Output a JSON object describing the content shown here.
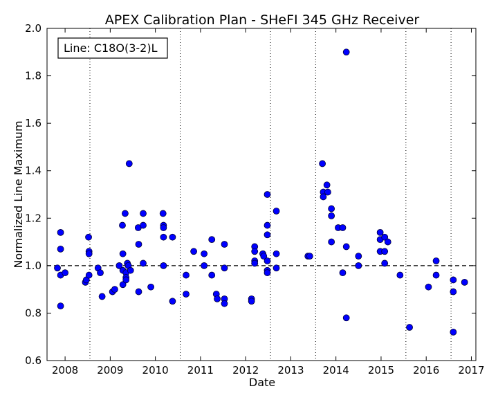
{
  "chart_data": {
    "type": "scatter",
    "title": "APEX Calibration Plan - SHeFI 345 GHz Receiver",
    "xlabel": "Date",
    "ylabel": "Normalized Line Maximum",
    "annotation": "Line: C18O(3-2)L",
    "xlim": [
      2007.6,
      2017.1
    ],
    "ylim": [
      0.6,
      2.0
    ],
    "x_ticks": [
      "2008",
      "2009",
      "2010",
      "2011",
      "2012",
      "2013",
      "2014",
      "2015",
      "2016",
      "2017"
    ],
    "y_ticks": [
      "0.6",
      "0.8",
      "1.0",
      "1.2",
      "1.4",
      "1.6",
      "1.8",
      "2.0"
    ],
    "reference_line": 1.0,
    "vertical_dotted_lines": [
      2008.55,
      2010.55,
      2012.55,
      2013.55,
      2015.55,
      2016.55
    ],
    "marker_color": "#0000ff",
    "grid": false,
    "legend_position": "top-left",
    "points": [
      [
        2007.83,
        0.99
      ],
      [
        2007.9,
        0.96
      ],
      [
        2007.9,
        1.07
      ],
      [
        2007.9,
        1.14
      ],
      [
        2007.9,
        0.83
      ],
      [
        2008.0,
        0.97
      ],
      [
        2008.45,
        0.93
      ],
      [
        2008.47,
        0.94
      ],
      [
        2008.52,
        1.12
      ],
      [
        2008.53,
        1.06
      ],
      [
        2008.53,
        1.05
      ],
      [
        2008.53,
        0.96
      ],
      [
        2008.73,
        0.99
      ],
      [
        2008.78,
        0.97
      ],
      [
        2008.82,
        0.87
      ],
      [
        2009.05,
        0.89
      ],
      [
        2009.1,
        0.9
      ],
      [
        2009.2,
        1.0
      ],
      [
        2009.27,
        1.17
      ],
      [
        2009.28,
        1.05
      ],
      [
        2009.28,
        0.98
      ],
      [
        2009.28,
        0.92
      ],
      [
        2009.33,
        1.22
      ],
      [
        2009.35,
        0.97
      ],
      [
        2009.35,
        0.95
      ],
      [
        2009.35,
        0.94
      ],
      [
        2009.38,
        1.01
      ],
      [
        2009.4,
        1.0
      ],
      [
        2009.42,
        1.43
      ],
      [
        2009.45,
        0.98
      ],
      [
        2009.62,
        1.16
      ],
      [
        2009.63,
        1.09
      ],
      [
        2009.63,
        0.89
      ],
      [
        2009.73,
        1.22
      ],
      [
        2009.73,
        1.17
      ],
      [
        2009.73,
        1.01
      ],
      [
        2009.9,
        0.91
      ],
      [
        2010.17,
        1.22
      ],
      [
        2010.18,
        1.17
      ],
      [
        2010.18,
        1.16
      ],
      [
        2010.18,
        1.12
      ],
      [
        2010.18,
        1.0
      ],
      [
        2010.38,
        0.85
      ],
      [
        2010.38,
        1.12
      ],
      [
        2010.68,
        0.96
      ],
      [
        2010.68,
        0.88
      ],
      [
        2010.85,
        1.06
      ],
      [
        2011.08,
        1.05
      ],
      [
        2011.08,
        1.0
      ],
      [
        2011.25,
        1.11
      ],
      [
        2011.25,
        0.96
      ],
      [
        2011.35,
        0.88
      ],
      [
        2011.37,
        0.86
      ],
      [
        2011.53,
        1.09
      ],
      [
        2011.53,
        0.99
      ],
      [
        2011.53,
        0.86
      ],
      [
        2011.53,
        0.84
      ],
      [
        2012.13,
        0.86
      ],
      [
        2012.13,
        0.85
      ],
      [
        2012.2,
        1.08
      ],
      [
        2012.2,
        1.06
      ],
      [
        2012.2,
        1.02
      ],
      [
        2012.2,
        1.01
      ],
      [
        2012.38,
        1.05
      ],
      [
        2012.4,
        1.04
      ],
      [
        2012.48,
        1.3
      ],
      [
        2012.48,
        1.17
      ],
      [
        2012.48,
        1.13
      ],
      [
        2012.48,
        1.02
      ],
      [
        2012.48,
        0.98
      ],
      [
        2012.48,
        0.97
      ],
      [
        2012.68,
        1.23
      ],
      [
        2012.68,
        1.05
      ],
      [
        2012.68,
        0.99
      ],
      [
        2013.38,
        1.04
      ],
      [
        2013.42,
        1.04
      ],
      [
        2013.7,
        1.43
      ],
      [
        2013.72,
        1.31
      ],
      [
        2013.72,
        1.29
      ],
      [
        2013.8,
        1.34
      ],
      [
        2013.82,
        1.31
      ],
      [
        2013.9,
        1.24
      ],
      [
        2013.9,
        1.21
      ],
      [
        2013.9,
        1.1
      ],
      [
        2014.05,
        1.16
      ],
      [
        2014.15,
        1.16
      ],
      [
        2014.15,
        0.97
      ],
      [
        2014.23,
        1.9
      ],
      [
        2014.23,
        1.08
      ],
      [
        2014.23,
        0.78
      ],
      [
        2014.5,
        1.04
      ],
      [
        2014.5,
        1.0
      ],
      [
        2014.98,
        1.14
      ],
      [
        2014.98,
        1.11
      ],
      [
        2014.98,
        1.06
      ],
      [
        2015.08,
        1.12
      ],
      [
        2015.08,
        1.06
      ],
      [
        2015.08,
        1.01
      ],
      [
        2015.15,
        1.1
      ],
      [
        2015.42,
        0.96
      ],
      [
        2015.63,
        0.74
      ],
      [
        2016.05,
        0.91
      ],
      [
        2016.22,
        1.02
      ],
      [
        2016.22,
        0.96
      ],
      [
        2016.6,
        0.94
      ],
      [
        2016.6,
        0.89
      ],
      [
        2016.6,
        0.72
      ],
      [
        2016.85,
        0.93
      ]
    ]
  }
}
